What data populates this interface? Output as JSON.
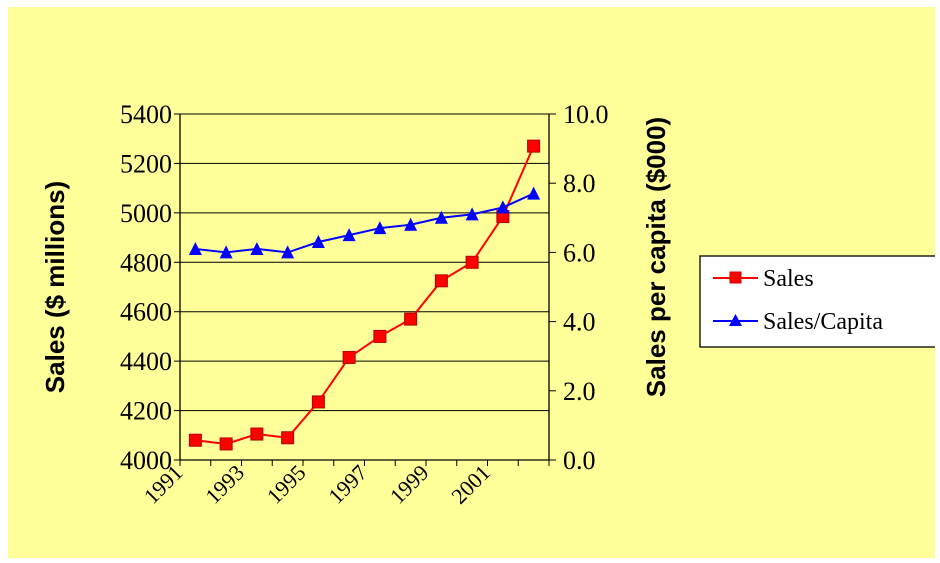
{
  "chart_data": {
    "type": "line",
    "title": "",
    "x": [
      "1991",
      "1992",
      "1993",
      "1994",
      "1995",
      "1996",
      "1997",
      "1998",
      "1999",
      "2000",
      "2001",
      "2002"
    ],
    "xtick_labels": [
      "1991",
      "1993",
      "1995",
      "1997",
      "1999",
      "2001"
    ],
    "ylabel_left": "Sales ($ millions)",
    "ylabel_right": "Sales per capita ($000)",
    "ylim_left": [
      4000,
      5400
    ],
    "yticks_left": [
      "4000",
      "4200",
      "4400",
      "4600",
      "4800",
      "5000",
      "5200",
      "5400"
    ],
    "ylim_right": [
      0,
      10
    ],
    "yticks_right": [
      "0.0",
      "2.0",
      "4.0",
      "6.0",
      "8.0",
      "10.0"
    ],
    "grid": "horizontal",
    "legend_position": "right",
    "series": [
      {
        "name": "Sales",
        "axis": "left",
        "color": "#ff0000",
        "marker": "square",
        "values": [
          4080,
          4065,
          4105,
          4090,
          4235,
          4415,
          4500,
          4570,
          4725,
          4800,
          4985,
          5270
        ]
      },
      {
        "name": "Sales/Capita",
        "axis": "right",
        "color": "#0000ff",
        "marker": "triangle",
        "values": [
          6.1,
          6.0,
          6.1,
          6.0,
          6.3,
          6.5,
          6.7,
          6.8,
          7.0,
          7.1,
          7.3,
          7.7
        ]
      }
    ]
  },
  "colors": {
    "background": "#ffff99",
    "plot_area": "#ffff99",
    "gridline": "#000000"
  }
}
